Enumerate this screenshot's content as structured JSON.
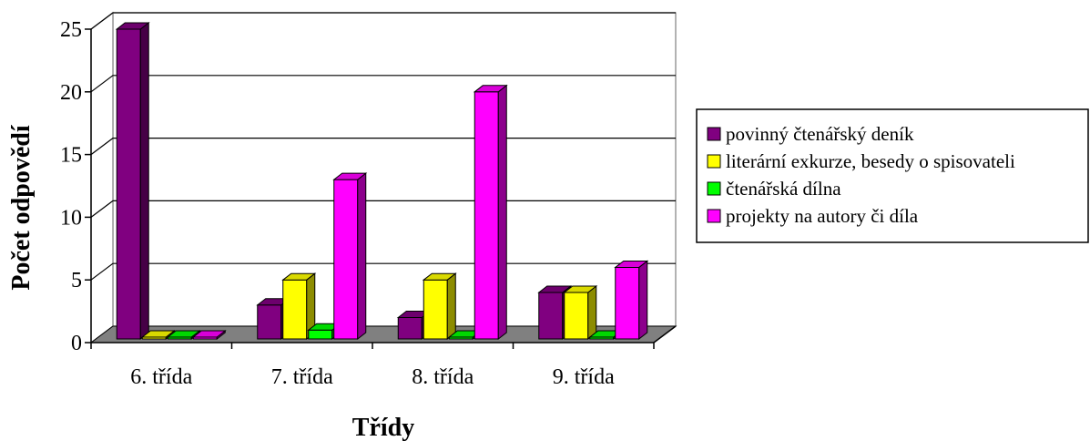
{
  "chart_data": {
    "type": "bar",
    "style": "3d-clustered-column",
    "title": "",
    "xlabel": "Třídy",
    "ylabel": "Počet odpovědí",
    "categories": [
      "6. třída",
      "7. třída",
      "8. třída",
      "9. třída"
    ],
    "ylim": [
      0,
      25
    ],
    "yticks": [
      "0",
      "5",
      "10",
      "15",
      "20",
      "25"
    ],
    "grid": true,
    "legend_position": "right",
    "series": [
      {
        "name": "povinný čtenářský deník",
        "values": [
          25,
          3,
          2,
          4
        ],
        "color": "#800080"
      },
      {
        "name": "literární exkurze, besedy o spisovateli",
        "values": [
          0,
          5,
          5,
          4
        ],
        "color": "#FFFF00"
      },
      {
        "name": "čtenářská dílna",
        "values": [
          0,
          1,
          0,
          0
        ],
        "color": "#00FF00"
      },
      {
        "name": "projekty na autory či díla",
        "values": [
          0,
          13,
          20,
          6
        ],
        "color": "#FF00FF"
      }
    ],
    "floor_color": "#808080"
  }
}
